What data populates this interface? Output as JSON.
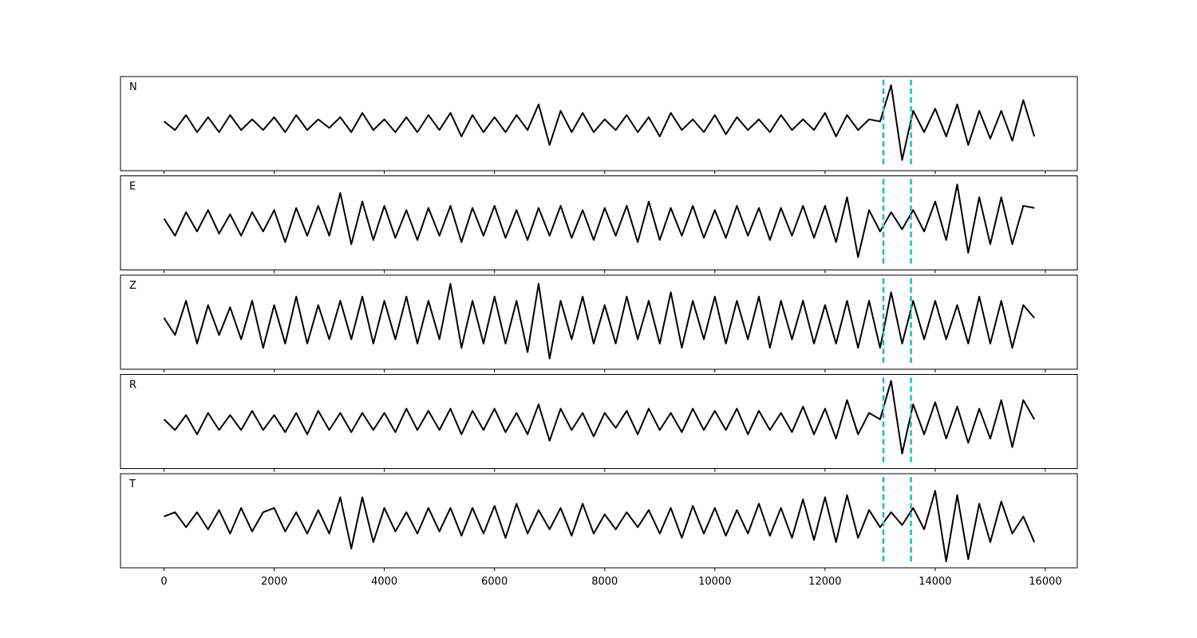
{
  "chart_data": [
    {
      "type": "line",
      "label": "N",
      "color": "#000000",
      "xlim": [
        -790,
        16580
      ],
      "ylim": [
        -1.1,
        1.1
      ],
      "xticks": [
        0,
        2000,
        4000,
        6000,
        8000,
        10000,
        12000,
        14000,
        16000
      ],
      "vlines": [
        13060,
        13560
      ],
      "vline_color": "#17bfbf",
      "x": [
        0,
        200,
        400,
        600,
        800,
        1000,
        1200,
        1400,
        1600,
        1800,
        2000,
        2200,
        2400,
        2600,
        2800,
        3000,
        3200,
        3400,
        3600,
        3800,
        4000,
        4200,
        4400,
        4600,
        4800,
        5000,
        5200,
        5400,
        5600,
        5800,
        6000,
        6200,
        6400,
        6600,
        6800,
        7000,
        7200,
        7400,
        7600,
        7800,
        8000,
        8200,
        8400,
        8600,
        8800,
        9000,
        9200,
        9400,
        9600,
        9800,
        10000,
        10200,
        10400,
        10600,
        10800,
        11000,
        11200,
        11400,
        11600,
        11800,
        12000,
        12200,
        12400,
        12600,
        12800,
        13000,
        13200,
        13400,
        13600,
        13800,
        14000,
        14200,
        14400,
        14600,
        14800,
        15000,
        15200,
        15400,
        15600,
        15800
      ],
      "values": [
        0.05,
        -0.15,
        0.2,
        -0.2,
        0.15,
        -0.2,
        0.2,
        -0.15,
        0.1,
        -0.15,
        0.15,
        -0.2,
        0.2,
        -0.15,
        0.1,
        -0.1,
        0.15,
        -0.2,
        0.25,
        -0.15,
        0.1,
        -0.2,
        0.15,
        -0.2,
        0.2,
        -0.15,
        0.25,
        -0.3,
        0.2,
        -0.2,
        0.15,
        -0.2,
        0.2,
        -0.15,
        0.45,
        -0.5,
        0.3,
        -0.2,
        0.25,
        -0.2,
        0.1,
        -0.15,
        0.2,
        -0.2,
        0.15,
        -0.3,
        0.25,
        -0.15,
        0.1,
        -0.2,
        0.2,
        -0.25,
        0.15,
        -0.15,
        0.1,
        -0.2,
        0.2,
        -0.15,
        0.1,
        -0.15,
        0.25,
        -0.3,
        0.2,
        -0.15,
        0.1,
        0.05,
        0.9,
        -0.85,
        0.3,
        -0.2,
        0.35,
        -0.3,
        0.45,
        -0.5,
        0.3,
        -0.35,
        0.3,
        -0.4,
        0.55,
        -0.3
      ]
    },
    {
      "type": "line",
      "label": "E",
      "color": "#000000",
      "xlim": [
        -790,
        16580
      ],
      "ylim": [
        -1.1,
        1.1
      ],
      "xticks": [
        0,
        2000,
        4000,
        6000,
        8000,
        10000,
        12000,
        14000,
        16000
      ],
      "vlines": [
        13060,
        13560
      ],
      "vline_color": "#17bfbf",
      "x": [
        0,
        200,
        400,
        600,
        800,
        1000,
        1200,
        1400,
        1600,
        1800,
        2000,
        2200,
        2400,
        2600,
        2800,
        3000,
        3200,
        3400,
        3600,
        3800,
        4000,
        4200,
        4400,
        4600,
        4800,
        5000,
        5200,
        5400,
        5600,
        5800,
        6000,
        6200,
        6400,
        6600,
        6800,
        7000,
        7200,
        7400,
        7600,
        7800,
        8000,
        8200,
        8400,
        8600,
        8800,
        9000,
        9200,
        9400,
        9600,
        9800,
        10000,
        10200,
        10400,
        10600,
        10800,
        11000,
        11200,
        11400,
        11600,
        11800,
        12000,
        12200,
        12400,
        12600,
        12800,
        13000,
        13200,
        13400,
        13600,
        13800,
        14000,
        14200,
        14400,
        14600,
        14800,
        15000,
        15200,
        15400,
        15600,
        15800
      ],
      "values": [
        0.1,
        -0.3,
        0.25,
        -0.2,
        0.3,
        -0.25,
        0.2,
        -0.3,
        0.25,
        -0.2,
        0.3,
        -0.45,
        0.35,
        -0.3,
        0.4,
        -0.3,
        0.7,
        -0.5,
        0.5,
        -0.4,
        0.4,
        -0.35,
        0.3,
        -0.4,
        0.35,
        -0.3,
        0.4,
        -0.45,
        0.35,
        -0.3,
        0.4,
        -0.35,
        0.3,
        -0.4,
        0.35,
        -0.3,
        0.4,
        -0.35,
        0.3,
        -0.4,
        0.35,
        -0.3,
        0.4,
        -0.45,
        0.5,
        -0.4,
        0.35,
        -0.3,
        0.4,
        -0.35,
        0.3,
        -0.35,
        0.4,
        -0.3,
        0.35,
        -0.4,
        0.35,
        -0.3,
        0.4,
        -0.35,
        0.4,
        -0.45,
        0.6,
        -0.8,
        0.3,
        -0.2,
        0.25,
        -0.15,
        0.3,
        -0.2,
        0.5,
        -0.4,
        0.9,
        -0.7,
        0.6,
        -0.5,
        0.6,
        -0.5,
        0.4,
        0.35
      ]
    },
    {
      "type": "line",
      "label": "Z",
      "color": "#000000",
      "xlim": [
        -790,
        16580
      ],
      "ylim": [
        -1.1,
        1.1
      ],
      "xticks": [
        0,
        2000,
        4000,
        6000,
        8000,
        10000,
        12000,
        14000,
        16000
      ],
      "vlines": [
        13060,
        13560
      ],
      "vline_color": "#17bfbf",
      "x": [
        0,
        200,
        400,
        600,
        800,
        1000,
        1200,
        1400,
        1600,
        1800,
        2000,
        2200,
        2400,
        2600,
        2800,
        3000,
        3200,
        3400,
        3600,
        3800,
        4000,
        4200,
        4400,
        4600,
        4800,
        5000,
        5200,
        5400,
        5600,
        5800,
        6000,
        6200,
        6400,
        6600,
        6800,
        7000,
        7200,
        7400,
        7600,
        7800,
        8000,
        8200,
        8400,
        8600,
        8800,
        9000,
        9200,
        9400,
        9600,
        9800,
        10000,
        10200,
        10400,
        10600,
        10800,
        11000,
        11200,
        11400,
        11600,
        11800,
        12000,
        12200,
        12400,
        12600,
        12800,
        13000,
        13200,
        13400,
        13600,
        13800,
        14000,
        14200,
        14400,
        14600,
        14800,
        15000,
        15200,
        15400,
        15600,
        15800
      ],
      "values": [
        0.1,
        -0.3,
        0.5,
        -0.5,
        0.4,
        -0.3,
        0.35,
        -0.4,
        0.5,
        -0.6,
        0.4,
        -0.5,
        0.6,
        -0.5,
        0.4,
        -0.4,
        0.5,
        -0.4,
        0.6,
        -0.5,
        0.5,
        -0.4,
        0.6,
        -0.5,
        0.5,
        -0.4,
        0.9,
        -0.6,
        0.5,
        -0.5,
        0.6,
        -0.5,
        0.5,
        -0.7,
        0.9,
        -0.85,
        0.5,
        -0.4,
        0.6,
        -0.5,
        0.4,
        -0.5,
        0.6,
        -0.4,
        0.5,
        -0.5,
        0.7,
        -0.6,
        0.5,
        -0.4,
        0.6,
        -0.5,
        0.5,
        -0.4,
        0.6,
        -0.6,
        0.5,
        -0.4,
        0.5,
        -0.5,
        0.4,
        -0.5,
        0.5,
        -0.6,
        0.5,
        -0.6,
        0.7,
        -0.5,
        0.5,
        -0.4,
        0.5,
        -0.4,
        0.4,
        -0.5,
        0.6,
        -0.5,
        0.5,
        -0.6,
        0.4,
        0.1
      ]
    },
    {
      "type": "line",
      "label": "R",
      "color": "#000000",
      "xlim": [
        -790,
        16580
      ],
      "ylim": [
        -1.1,
        1.1
      ],
      "xticks": [
        0,
        2000,
        4000,
        6000,
        8000,
        10000,
        12000,
        14000,
        16000
      ],
      "vlines": [
        13060,
        13560
      ],
      "vline_color": "#17bfbf",
      "x": [
        0,
        200,
        400,
        600,
        800,
        1000,
        1200,
        1400,
        1600,
        1800,
        2000,
        2200,
        2400,
        2600,
        2800,
        3000,
        3200,
        3400,
        3600,
        3800,
        4000,
        4200,
        4400,
        4600,
        4800,
        5000,
        5200,
        5400,
        5600,
        5800,
        6000,
        6200,
        6400,
        6600,
        6800,
        7000,
        7200,
        7400,
        7600,
        7800,
        8000,
        8200,
        8400,
        8600,
        8800,
        9000,
        9200,
        9400,
        9600,
        9800,
        10000,
        10200,
        10400,
        10600,
        10800,
        11000,
        11200,
        11400,
        11600,
        11800,
        12000,
        12200,
        12400,
        12600,
        12800,
        13000,
        13200,
        13400,
        13600,
        13800,
        14000,
        14200,
        14400,
        14600,
        14800,
        15000,
        15200,
        15400,
        15600,
        15800
      ],
      "values": [
        0.05,
        -0.2,
        0.15,
        -0.3,
        0.2,
        -0.2,
        0.15,
        -0.2,
        0.25,
        -0.2,
        0.15,
        -0.25,
        0.2,
        -0.3,
        0.25,
        -0.2,
        0.2,
        -0.25,
        0.2,
        -0.2,
        0.2,
        -0.25,
        0.3,
        -0.2,
        0.25,
        -0.2,
        0.3,
        -0.3,
        0.25,
        -0.2,
        0.3,
        -0.25,
        0.2,
        -0.3,
        0.4,
        -0.45,
        0.3,
        -0.2,
        0.2,
        -0.35,
        0.2,
        -0.15,
        0.25,
        -0.3,
        0.3,
        -0.2,
        0.2,
        -0.25,
        0.3,
        -0.2,
        0.25,
        -0.2,
        0.3,
        -0.3,
        0.25,
        -0.2,
        0.2,
        -0.25,
        0.35,
        -0.3,
        0.3,
        -0.4,
        0.5,
        -0.3,
        0.2,
        0.05,
        0.95,
        -0.75,
        0.4,
        -0.3,
        0.45,
        -0.4,
        0.35,
        -0.5,
        0.3,
        -0.4,
        0.5,
        -0.6,
        0.5,
        0.05
      ]
    },
    {
      "type": "line",
      "label": "T",
      "color": "#000000",
      "xlim": [
        -790,
        16580
      ],
      "ylim": [
        -1.1,
        1.1
      ],
      "xticks": [
        0,
        2000,
        4000,
        6000,
        8000,
        10000,
        12000,
        14000,
        16000
      ],
      "vlines": [
        13060,
        13560
      ],
      "vline_color": "#17bfbf",
      "x": [
        0,
        200,
        400,
        600,
        800,
        1000,
        1200,
        1400,
        1600,
        1800,
        2000,
        2200,
        2400,
        2600,
        2800,
        3000,
        3200,
        3400,
        3600,
        3800,
        4000,
        4200,
        4400,
        4600,
        4800,
        5000,
        5200,
        5400,
        5600,
        5800,
        6000,
        6200,
        6400,
        6600,
        6800,
        7000,
        7200,
        7400,
        7600,
        7800,
        8000,
        8200,
        8400,
        8600,
        8800,
        9000,
        9200,
        9400,
        9600,
        9800,
        10000,
        10200,
        10400,
        10600,
        10800,
        11000,
        11200,
        11400,
        11600,
        11800,
        12000,
        12200,
        12400,
        12600,
        12800,
        13000,
        13200,
        13400,
        13600,
        13800,
        14000,
        14200,
        14400,
        14600,
        14800,
        15000,
        15200,
        15400,
        15600,
        15800
      ],
      "values": [
        0.1,
        0.2,
        -0.15,
        0.2,
        -0.2,
        0.25,
        -0.3,
        0.3,
        -0.25,
        0.2,
        0.3,
        -0.25,
        0.2,
        -0.3,
        0.25,
        -0.3,
        0.55,
        -0.65,
        0.55,
        -0.5,
        0.3,
        -0.25,
        0.2,
        -0.3,
        0.3,
        -0.25,
        0.3,
        -0.35,
        0.3,
        -0.3,
        0.35,
        -0.4,
        0.4,
        -0.3,
        0.25,
        -0.2,
        0.3,
        -0.35,
        0.4,
        -0.3,
        0.15,
        -0.2,
        0.2,
        -0.15,
        0.25,
        -0.3,
        0.3,
        -0.4,
        0.35,
        -0.3,
        0.3,
        -0.35,
        0.25,
        -0.3,
        0.4,
        -0.35,
        0.3,
        -0.4,
        0.5,
        -0.45,
        0.55,
        -0.5,
        0.6,
        -0.4,
        0.25,
        -0.15,
        0.2,
        -0.1,
        0.3,
        -0.2,
        0.7,
        -0.95,
        0.6,
        -0.9,
        0.4,
        -0.5,
        0.45,
        -0.3,
        0.1,
        -0.5
      ]
    }
  ]
}
